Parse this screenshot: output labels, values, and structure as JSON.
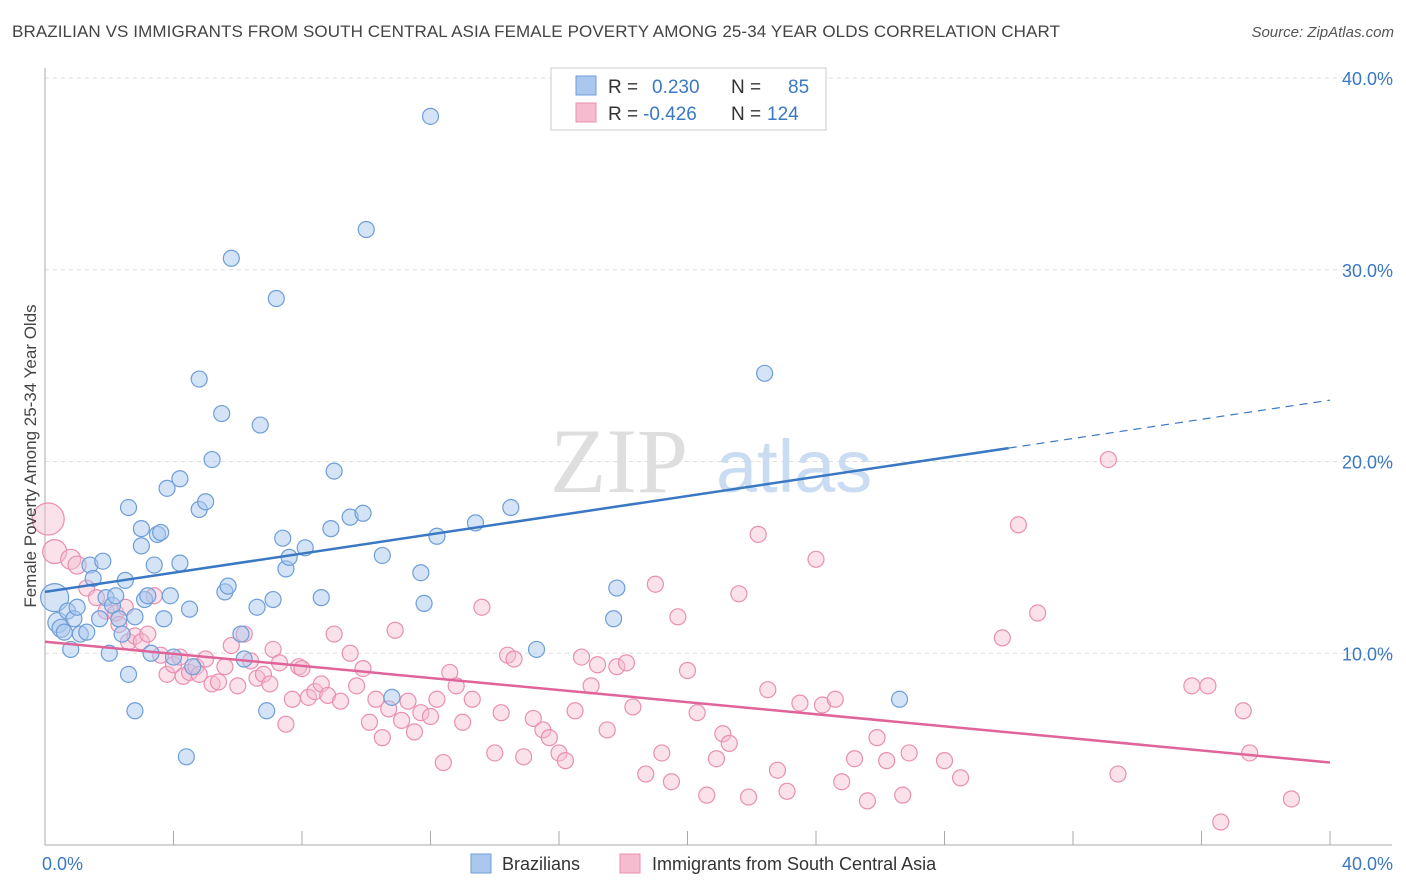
{
  "title": "BRAZILIAN VS IMMIGRANTS FROM SOUTH CENTRAL ASIA FEMALE POVERTY AMONG 25-34 YEAR OLDS CORRELATION CHART",
  "source": "Source: ZipAtlas.com",
  "watermark": {
    "zip": "ZIP",
    "atlas": "atlas"
  },
  "legend": {
    "rows": [
      {
        "r_label": "R =",
        "r_value": "0.230",
        "n_label": "N =",
        "n_value": "85"
      },
      {
        "r_label": "R =",
        "r_value": "-0.426",
        "n_label": "N =",
        "n_value": "124"
      }
    ]
  },
  "colors": {
    "blue": "#3a78c3",
    "blue_fill": "#aac8ee",
    "blue_stroke": "#6e9ed8",
    "pink": "#e0649a",
    "pink_fill": "#f5bcd0",
    "pink_stroke": "#e98fb2",
    "grid": "#dddddd"
  },
  "chart_data": {
    "type": "scatter",
    "title": "BRAZILIAN VS IMMIGRANTS FROM SOUTH CENTRAL ASIA FEMALE POVERTY AMONG 25-34 YEAR OLDS CORRELATION CHART",
    "xlabel": "",
    "ylabel": "Female Poverty Among 25-34 Year Olds",
    "xlim": [
      0,
      40
    ],
    "ylim": [
      0,
      40
    ],
    "x_tick_labels": [
      "0.0%",
      "40.0%"
    ],
    "y_tick_labels": [
      "10.0%",
      "20.0%",
      "30.0%",
      "40.0%"
    ],
    "y_ticks": [
      10,
      20,
      30,
      40
    ],
    "grid": true,
    "legend_position": "bottom",
    "series": [
      {
        "name": "Brazilians",
        "color": "#3a78c3",
        "r": 0.23,
        "n": 85,
        "trend": {
          "x0": 0,
          "y0": 13.2,
          "x1": 30,
          "y1": 20.7,
          "dash_to_x": 40,
          "dash_to_y": 23.2
        },
        "points": [
          [
            0.3,
            12.9,
            14
          ],
          [
            0.4,
            11.6,
            10
          ],
          [
            0.5,
            11.3,
            9
          ],
          [
            0.6,
            11.1,
            8
          ],
          [
            0.7,
            12.2,
            8
          ],
          [
            0.8,
            10.2,
            8
          ],
          [
            0.9,
            11.8,
            8
          ],
          [
            1.0,
            12.4,
            8
          ],
          [
            1.1,
            11.0,
            8
          ],
          [
            1.3,
            11.1,
            8
          ],
          [
            1.4,
            14.6,
            8
          ],
          [
            1.5,
            13.9,
            8
          ],
          [
            1.7,
            11.8,
            8
          ],
          [
            1.8,
            14.8,
            8
          ],
          [
            1.9,
            12.9,
            8
          ],
          [
            2.0,
            10.0,
            8
          ],
          [
            2.1,
            12.5,
            8
          ],
          [
            2.2,
            13.0,
            8
          ],
          [
            2.3,
            11.8,
            8
          ],
          [
            2.4,
            11.0,
            8
          ],
          [
            2.5,
            13.8,
            8
          ],
          [
            2.6,
            8.9,
            8
          ],
          [
            2.6,
            17.6,
            8
          ],
          [
            2.8,
            11.9,
            8
          ],
          [
            2.8,
            7.0,
            8
          ],
          [
            3.0,
            15.6,
            8
          ],
          [
            3.0,
            16.5,
            8
          ],
          [
            3.1,
            12.8,
            8
          ],
          [
            3.2,
            13.0,
            8
          ],
          [
            3.3,
            10.0,
            8
          ],
          [
            3.4,
            14.6,
            8
          ],
          [
            3.5,
            16.2,
            8
          ],
          [
            3.6,
            16.3,
            8
          ],
          [
            3.7,
            11.8,
            8
          ],
          [
            3.8,
            18.6,
            8
          ],
          [
            3.9,
            13.0,
            8
          ],
          [
            4.0,
            9.8,
            8
          ],
          [
            4.2,
            14.7,
            8
          ],
          [
            4.2,
            19.1,
            8
          ],
          [
            4.4,
            4.6,
            8
          ],
          [
            4.5,
            12.3,
            8
          ],
          [
            4.6,
            9.3,
            8
          ],
          [
            4.8,
            17.5,
            8
          ],
          [
            4.8,
            24.3,
            8
          ],
          [
            5.0,
            17.9,
            8
          ],
          [
            5.2,
            20.1,
            8
          ],
          [
            5.5,
            22.5,
            8
          ],
          [
            5.6,
            13.2,
            8
          ],
          [
            5.7,
            13.5,
            8
          ],
          [
            5.8,
            30.6,
            8
          ],
          [
            6.1,
            11.0,
            8
          ],
          [
            6.2,
            9.7,
            8
          ],
          [
            6.6,
            12.4,
            8
          ],
          [
            6.7,
            21.9,
            8
          ],
          [
            6.9,
            7.0,
            8
          ],
          [
            7.1,
            12.8,
            8
          ],
          [
            7.2,
            28.5,
            8
          ],
          [
            7.4,
            16.0,
            8
          ],
          [
            7.5,
            14.4,
            8
          ],
          [
            7.6,
            15.0,
            8
          ],
          [
            8.1,
            15.5,
            8
          ],
          [
            8.6,
            12.9,
            8
          ],
          [
            8.9,
            16.5,
            8
          ],
          [
            9.0,
            19.5,
            8
          ],
          [
            9.5,
            17.1,
            8
          ],
          [
            9.9,
            17.3,
            8
          ],
          [
            10.0,
            32.1,
            8
          ],
          [
            10.5,
            15.1,
            8
          ],
          [
            10.8,
            7.7,
            8
          ],
          [
            11.7,
            14.2,
            8
          ],
          [
            11.8,
            12.6,
            8
          ],
          [
            12.0,
            38.0,
            8
          ],
          [
            12.2,
            16.1,
            8
          ],
          [
            13.4,
            16.8,
            8
          ],
          [
            14.5,
            17.6,
            8
          ],
          [
            15.3,
            10.2,
            8
          ],
          [
            17.7,
            11.8,
            8
          ],
          [
            17.8,
            13.4,
            8
          ],
          [
            22.4,
            24.6,
            8
          ],
          [
            26.6,
            7.6,
            8
          ]
        ]
      },
      {
        "name": "Immigrants from South Central Asia",
        "color": "#e0649a",
        "r": -0.426,
        "n": 124,
        "trend": {
          "x0": 0,
          "y0": 10.6,
          "x1": 40,
          "y1": 4.3
        },
        "points": [
          [
            0.1,
            17.0,
            16
          ],
          [
            0.3,
            15.3,
            12
          ],
          [
            0.8,
            14.9,
            10
          ],
          [
            1.0,
            14.6,
            9
          ],
          [
            1.3,
            13.4,
            8
          ],
          [
            1.6,
            12.9,
            8
          ],
          [
            1.9,
            12.2,
            8
          ],
          [
            2.2,
            12.1,
            8
          ],
          [
            2.3,
            11.5,
            8
          ],
          [
            2.5,
            12.4,
            8
          ],
          [
            2.6,
            10.6,
            8
          ],
          [
            2.8,
            10.9,
            8
          ],
          [
            3.0,
            10.6,
            8
          ],
          [
            3.2,
            11.0,
            8
          ],
          [
            3.4,
            13.0,
            8
          ],
          [
            3.6,
            9.9,
            8
          ],
          [
            3.8,
            8.9,
            8
          ],
          [
            4.0,
            9.4,
            8
          ],
          [
            4.2,
            9.8,
            8
          ],
          [
            4.3,
            8.8,
            8
          ],
          [
            4.5,
            9.0,
            8
          ],
          [
            4.7,
            9.3,
            8
          ],
          [
            4.8,
            8.9,
            8
          ],
          [
            5.0,
            9.7,
            8
          ],
          [
            5.2,
            8.4,
            8
          ],
          [
            5.4,
            8.5,
            8
          ],
          [
            5.6,
            9.3,
            8
          ],
          [
            5.8,
            10.4,
            8
          ],
          [
            6.0,
            8.3,
            8
          ],
          [
            6.2,
            11.0,
            8
          ],
          [
            6.4,
            9.6,
            8
          ],
          [
            6.6,
            8.7,
            8
          ],
          [
            6.8,
            8.9,
            8
          ],
          [
            7.0,
            8.4,
            8
          ],
          [
            7.1,
            10.2,
            8
          ],
          [
            7.3,
            9.5,
            8
          ],
          [
            7.5,
            6.3,
            8
          ],
          [
            7.7,
            7.6,
            8
          ],
          [
            7.9,
            9.3,
            8
          ],
          [
            8.0,
            9.2,
            8
          ],
          [
            8.2,
            7.7,
            8
          ],
          [
            8.4,
            8.0,
            8
          ],
          [
            8.6,
            8.4,
            8
          ],
          [
            8.8,
            7.8,
            8
          ],
          [
            9.0,
            11.0,
            8
          ],
          [
            9.2,
            7.5,
            8
          ],
          [
            9.5,
            10.0,
            8
          ],
          [
            9.7,
            8.3,
            8
          ],
          [
            9.9,
            9.2,
            8
          ],
          [
            10.1,
            6.4,
            8
          ],
          [
            10.3,
            7.6,
            8
          ],
          [
            10.5,
            5.6,
            8
          ],
          [
            10.7,
            7.1,
            8
          ],
          [
            10.9,
            11.2,
            8
          ],
          [
            11.1,
            6.5,
            8
          ],
          [
            11.3,
            7.5,
            8
          ],
          [
            11.5,
            5.9,
            8
          ],
          [
            11.7,
            6.9,
            8
          ],
          [
            12.0,
            6.7,
            8
          ],
          [
            12.2,
            7.6,
            8
          ],
          [
            12.4,
            4.3,
            8
          ],
          [
            12.6,
            9.0,
            8
          ],
          [
            12.8,
            8.3,
            8
          ],
          [
            13.0,
            6.4,
            8
          ],
          [
            13.3,
            7.6,
            8
          ],
          [
            13.6,
            12.4,
            8
          ],
          [
            14.0,
            4.8,
            8
          ],
          [
            14.2,
            6.9,
            8
          ],
          [
            14.4,
            9.9,
            8
          ],
          [
            14.6,
            9.7,
            8
          ],
          [
            14.9,
            4.6,
            8
          ],
          [
            15.2,
            6.6,
            8
          ],
          [
            15.5,
            6.0,
            8
          ],
          [
            15.7,
            5.6,
            8
          ],
          [
            16.0,
            4.8,
            8
          ],
          [
            16.2,
            4.4,
            8
          ],
          [
            16.5,
            7.0,
            8
          ],
          [
            16.7,
            9.8,
            8
          ],
          [
            17.0,
            8.3,
            8
          ],
          [
            17.2,
            9.4,
            8
          ],
          [
            17.5,
            6.0,
            8
          ],
          [
            17.8,
            9.3,
            8
          ],
          [
            18.1,
            9.5,
            8
          ],
          [
            18.3,
            7.2,
            8
          ],
          [
            18.7,
            3.7,
            8
          ],
          [
            19.0,
            13.6,
            8
          ],
          [
            19.2,
            4.8,
            8
          ],
          [
            19.5,
            3.3,
            8
          ],
          [
            19.7,
            11.9,
            8
          ],
          [
            20.0,
            9.1,
            8
          ],
          [
            20.3,
            6.9,
            8
          ],
          [
            20.6,
            2.6,
            8
          ],
          [
            20.9,
            4.5,
            8
          ],
          [
            21.1,
            5.8,
            8
          ],
          [
            21.3,
            5.3,
            8
          ],
          [
            21.6,
            13.1,
            8
          ],
          [
            21.9,
            2.5,
            8
          ],
          [
            22.2,
            16.2,
            8
          ],
          [
            22.5,
            8.1,
            8
          ],
          [
            22.8,
            3.9,
            8
          ],
          [
            23.1,
            2.8,
            8
          ],
          [
            23.5,
            7.4,
            8
          ],
          [
            24.0,
            14.9,
            8
          ],
          [
            24.2,
            7.3,
            8
          ],
          [
            24.6,
            7.6,
            8
          ],
          [
            24.8,
            3.3,
            8
          ],
          [
            25.2,
            4.5,
            8
          ],
          [
            25.6,
            2.3,
            8
          ],
          [
            25.9,
            5.6,
            8
          ],
          [
            26.2,
            4.4,
            8
          ],
          [
            26.7,
            2.6,
            8
          ],
          [
            26.9,
            4.8,
            8
          ],
          [
            28.0,
            4.4,
            8
          ],
          [
            28.5,
            3.5,
            8
          ],
          [
            29.8,
            10.8,
            8
          ],
          [
            30.3,
            16.7,
            8
          ],
          [
            30.9,
            12.1,
            8
          ],
          [
            33.1,
            20.1,
            8
          ],
          [
            33.4,
            3.7,
            8
          ],
          [
            35.7,
            8.3,
            8
          ],
          [
            36.2,
            8.3,
            8
          ],
          [
            36.6,
            1.2,
            8
          ],
          [
            37.3,
            7.0,
            8
          ],
          [
            37.5,
            4.8,
            8
          ],
          [
            38.8,
            2.4,
            8
          ]
        ]
      }
    ]
  },
  "bottom_legend": [
    {
      "label": "Brazilians"
    },
    {
      "label": "Immigrants from South Central Asia"
    }
  ]
}
